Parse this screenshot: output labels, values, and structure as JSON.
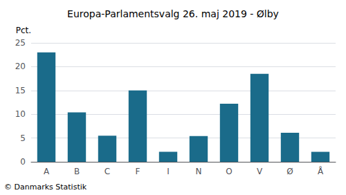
{
  "chart_data": {
    "type": "bar",
    "title": "Europa-Parlamentsvalg 26. maj 2019 - Ølby",
    "categories": [
      "A",
      "B",
      "C",
      "F",
      "I",
      "N",
      "O",
      "V",
      "Ø",
      "Å"
    ],
    "values": [
      23.0,
      10.4,
      5.5,
      15.0,
      2.1,
      5.4,
      12.2,
      18.5,
      6.1,
      2.1
    ],
    "color": "#1a6b8a",
    "ylabel": "Pct.",
    "ylim": [
      0,
      25
    ],
    "yticks": [
      0,
      5,
      10,
      15,
      20,
      25
    ],
    "grid": true,
    "footer": "© Danmarks Statistik"
  }
}
